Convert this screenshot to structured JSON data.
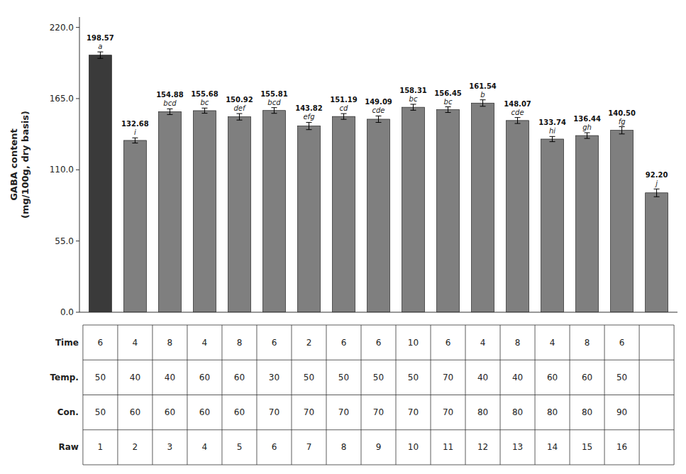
{
  "chart_data": {
    "type": "bar",
    "categories": [
      null,
      null,
      null,
      null,
      null,
      null,
      null,
      null,
      null,
      null,
      null,
      null,
      null,
      null,
      null,
      null,
      null
    ],
    "values": [
      198.57,
      132.68,
      154.88,
      155.68,
      150.92,
      155.81,
      143.82,
      151.19,
      149.09,
      158.31,
      156.45,
      161.54,
      148.07,
      133.74,
      136.44,
      140.5,
      92.2
    ],
    "value_labels": [
      "198.57",
      "132.68",
      "154.88",
      "155.68",
      "150.92",
      "155.81",
      "143.82",
      "151.19",
      "149.09",
      "158.31",
      "156.45",
      "161.54",
      "148.07",
      "133.74",
      "136.44",
      "140.50",
      "92.20"
    ],
    "errors": [
      2.5,
      2.0,
      2.2,
      2.0,
      2.5,
      2.2,
      2.8,
      2.2,
      2.5,
      2.3,
      2.2,
      2.5,
      2.3,
      2.0,
      2.2,
      2.8,
      3.0
    ],
    "stat_labels": [
      "a",
      "i",
      "bcd",
      "bc",
      "def",
      "bcd",
      "efg",
      "cd",
      "cde",
      "bc",
      "bc",
      "b",
      "cde",
      "hi",
      "gh",
      "fg",
      "j"
    ],
    "colors": [
      "#3a3a3a",
      "#7f7f7f",
      "#7f7f7f",
      "#7f7f7f",
      "#7f7f7f",
      "#7f7f7f",
      "#7f7f7f",
      "#7f7f7f",
      "#7f7f7f",
      "#7f7f7f",
      "#7f7f7f",
      "#7f7f7f",
      "#7f7f7f",
      "#7f7f7f",
      "#7f7f7f",
      "#7f7f7f",
      "#7f7f7f"
    ],
    "ylabel": "GABA content\n(mg/100g, dry basis)",
    "ylim": [
      0,
      228
    ],
    "yticks": [
      {
        "value": 0.0,
        "label": "0.0"
      },
      {
        "value": 55.0,
        "label": "55.0"
      },
      {
        "value": 110.0,
        "label": "110.0"
      },
      {
        "value": 165.0,
        "label": "165.0"
      },
      {
        "value": 220.0,
        "label": "220.0"
      }
    ],
    "data_labels": true,
    "tick_labels": "y",
    "grid": false,
    "table": {
      "row_labels": [
        "Time",
        "Temp.",
        "Con.",
        "Raw"
      ],
      "rows": [
        [
          "6",
          "4",
          "8",
          "4",
          "8",
          "6",
          "2",
          "6",
          "6",
          "10",
          "6",
          "4",
          "8",
          "4",
          "8",
          "6"
        ],
        [
          "50",
          "40",
          "40",
          "60",
          "60",
          "30",
          "50",
          "50",
          "50",
          "50",
          "70",
          "40",
          "40",
          "60",
          "60",
          "50"
        ],
        [
          "50",
          "60",
          "60",
          "60",
          "60",
          "70",
          "70",
          "70",
          "70",
          "70",
          "70",
          "80",
          "80",
          "80",
          "80",
          "90"
        ],
        [
          "1",
          "2",
          "3",
          "4",
          "5",
          "6",
          "7",
          "8",
          "9",
          "10",
          "11",
          "12",
          "13",
          "14",
          "15",
          "16"
        ]
      ]
    }
  }
}
